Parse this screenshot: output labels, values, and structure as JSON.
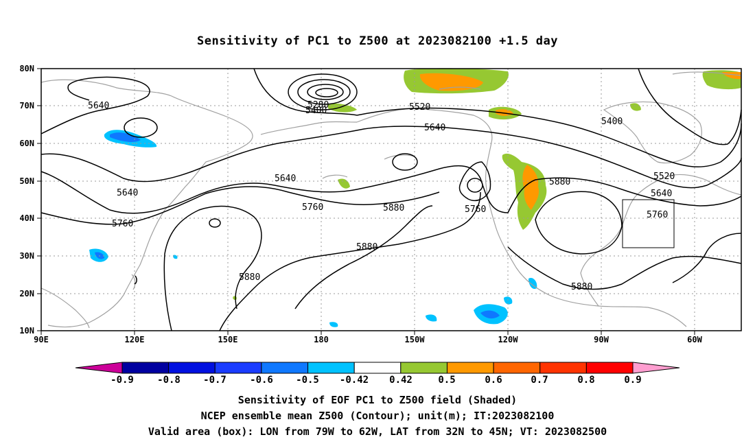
{
  "title": "Sensitivity of PC1 to Z500 at 2023082100 +1.5 day",
  "map": {
    "lon_ticks": [
      "90E",
      "120E",
      "150E",
      "180",
      "150W",
      "120W",
      "90W",
      "60W"
    ],
    "lat_ticks": [
      "80N",
      "70N",
      "60N",
      "50N",
      "40N",
      "30N",
      "20N",
      "10N"
    ],
    "domain": {
      "lon_min": 90,
      "lon_max": 315,
      "lat_min": 10,
      "lat_max": 80
    },
    "contour_interval_m": 120,
    "contour_labels": [
      "5640",
      "5400",
      "5280",
      "5520",
      "5640",
      "5400",
      "5640",
      "5640",
      "5760",
      "5760",
      "5880",
      "5760",
      "5880",
      "5880",
      "5880",
      "5880",
      "5520",
      "5640",
      "5760"
    ],
    "valid_box": {
      "lon_west": "79W",
      "lon_east": "62W",
      "lat_south": "32N",
      "lat_north": "45N"
    },
    "grid": true
  },
  "colorbar": {
    "labels": [
      "-0.9",
      "-0.8",
      "-0.7",
      "-0.6",
      "-0.5",
      "-0.42",
      "0.42",
      "0.5",
      "0.6",
      "0.7",
      "0.8",
      "0.9"
    ],
    "colors": [
      "#cc0099",
      "#0000a0",
      "#0010e0",
      "#1a3cff",
      "#0f78ff",
      "#00c2ff",
      "#ffffff",
      "#96c832",
      "#ff9900",
      "#ff6600",
      "#ff3300",
      "#ff0000",
      "#ff9ed0"
    ]
  },
  "footer": {
    "line1": "Sensitivity of EOF PC1 to Z500 field (Shaded)",
    "line2": "NCEP ensemble mean Z500 (Contour); unit(m); IT:2023082100",
    "line3": "Valid area (box): LON from 79W to 62W, LAT from 32N to 45N; VT: 2023082500"
  }
}
